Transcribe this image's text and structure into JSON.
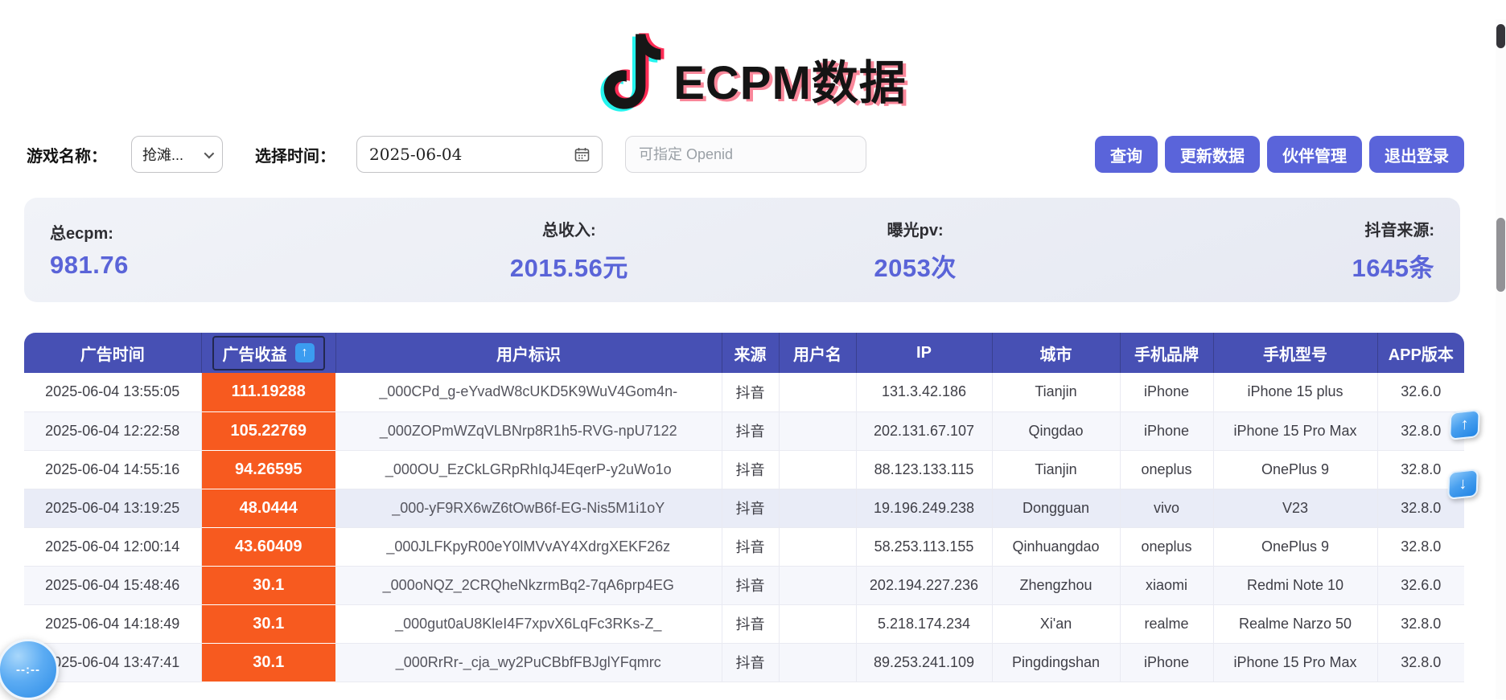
{
  "title": {
    "text": "ECPM数据"
  },
  "filters": {
    "game_label": "游戏名称：",
    "game_value": "抢滩...",
    "time_label": "选择时间：",
    "time_value": "2025-06-04",
    "openid_placeholder": "可指定 Openid"
  },
  "actions": {
    "query": "查询",
    "update": "更新数据",
    "partners": "伙伴管理",
    "logout": "退出登录"
  },
  "stats": [
    {
      "label": "总ecpm:",
      "value": "981.76"
    },
    {
      "label": "总收入:",
      "value": "2015.56元"
    },
    {
      "label": "曝光pv:",
      "value": "2053次"
    },
    {
      "label": "抖音来源:",
      "value": "1645条"
    }
  ],
  "table": {
    "headers": [
      "广告时间",
      "广告收益",
      "用户标识",
      "来源",
      "用户名",
      "IP",
      "城市",
      "手机品牌",
      "手机型号",
      "APP版本"
    ],
    "sort_arrow": "↑",
    "rows": [
      [
        "2025-06-04 13:55:05",
        "111.19288",
        "_000CPd_g-eYvadW8cUKD5K9WuV4Gom4n-",
        "抖音",
        "",
        "131.3.42.186",
        "Tianjin",
        "iPhone",
        "iPhone 15 plus",
        "32.6.0"
      ],
      [
        "2025-06-04 12:22:58",
        "105.22769",
        "_000ZOPmWZqVLBNrp8R1h5-RVG-npU7122",
        "抖音",
        "",
        "202.131.67.107",
        "Qingdao",
        "iPhone",
        "iPhone 15 Pro Max",
        "32.8.0"
      ],
      [
        "2025-06-04 14:55:16",
        "94.26595",
        "_000OU_EzCkLGRpRhIqJ4EqerP-y2uWo1o",
        "抖音",
        "",
        "88.123.133.115",
        "Tianjin",
        "oneplus",
        "OnePlus 9",
        "32.8.0"
      ],
      [
        "2025-06-04 13:19:25",
        "48.0444",
        "_000-yF9RX6wZ6tOwB6f-EG-Nis5M1i1oY",
        "抖音",
        "",
        "19.196.249.238",
        "Dongguan",
        "vivo",
        "V23",
        "32.8.0"
      ],
      [
        "2025-06-04 12:00:14",
        "43.60409",
        "_000JLFKpyR00eY0lMVvAY4XdrgXEKF26z",
        "抖音",
        "",
        "58.253.113.155",
        "Qinhuangdao",
        "oneplus",
        "OnePlus 9",
        "32.8.0"
      ],
      [
        "2025-06-04 15:48:46",
        "30.1",
        "_000oNQZ_2CRQheNkzrmBq2-7qA6prp4EG",
        "抖音",
        "",
        "202.194.227.236",
        "Zhengzhou",
        "xiaomi",
        "Redmi Note 10",
        "32.6.0"
      ],
      [
        "2025-06-04 14:18:49",
        "30.1",
        "_000gut0aU8KleI4F7xpvX6LqFc3RKs-Z_",
        "抖音",
        "",
        "5.218.174.234",
        "Xi'an",
        "realme",
        "Realme Narzo 50",
        "32.8.0"
      ],
      [
        "2025-06-04 13:47:41",
        "30.1",
        "_000RrRr-_cja_wy2PuCBbfFBJglYFqmrc",
        "抖音",
        "",
        "89.253.241.109",
        "Pingdingshan",
        "iPhone",
        "iPhone 15 Pro Max",
        "32.8.0"
      ]
    ]
  },
  "floating": {
    "up_glyph": "↑",
    "down_glyph": "↓",
    "timer_text": "--:--"
  },
  "colors": {
    "header_bg": "#4750B4",
    "accent_purple": "#5A64D8",
    "revenue_orange": "#F75A1F",
    "sort_blue": "#3B9CF0",
    "logo_cyan": "#25F4EE",
    "logo_red": "#FE2C55"
  }
}
